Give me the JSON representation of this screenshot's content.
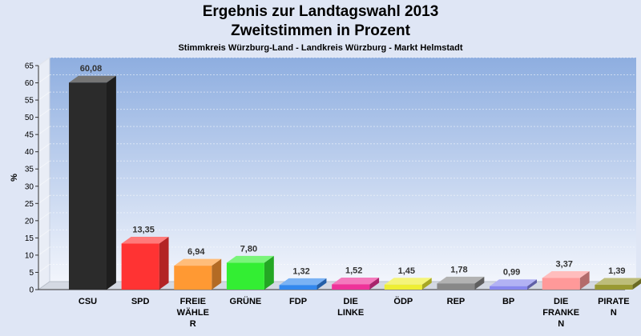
{
  "chart_data": {
    "type": "bar",
    "title": "Ergebnis zur Landtagswahl 2013",
    "subtitle": "Zweitstimmen in Prozent",
    "caption": "Stimmkreis Würzburg-Land - Landkreis Würzburg - Markt Helmstadt",
    "ylabel": "%",
    "xlabel": "",
    "ylim": [
      0,
      65
    ],
    "yticks": [
      0,
      5,
      10,
      15,
      20,
      25,
      30,
      35,
      40,
      45,
      50,
      55,
      60,
      65
    ],
    "grid": true,
    "categories": [
      [
        "CSU"
      ],
      [
        "SPD"
      ],
      [
        "FREIE",
        "WÄHLE",
        "R"
      ],
      [
        "GRÜNE"
      ],
      [
        "FDP"
      ],
      [
        "DIE",
        "LINKE"
      ],
      [
        "ÖDP"
      ],
      [
        "REP"
      ],
      [
        "BP"
      ],
      [
        "DIE",
        "FRANKE",
        "N"
      ],
      [
        "PIRATE",
        "N"
      ]
    ],
    "values": [
      60.08,
      13.35,
      6.94,
      7.8,
      1.32,
      1.52,
      1.45,
      1.78,
      0.99,
      3.37,
      1.39
    ],
    "value_labels": [
      "60,08",
      "13,35",
      "6,94",
      "7,80",
      "1,32",
      "1,52",
      "1,45",
      "1,78",
      "0,99",
      "3,37",
      "1,39"
    ],
    "colors": [
      "#2b2b2b",
      "#ff3333",
      "#ff9933",
      "#33ee33",
      "#3388ee",
      "#ee3399",
      "#eeee33",
      "#888888",
      "#8888ee",
      "#ff9999",
      "#999933"
    ]
  }
}
